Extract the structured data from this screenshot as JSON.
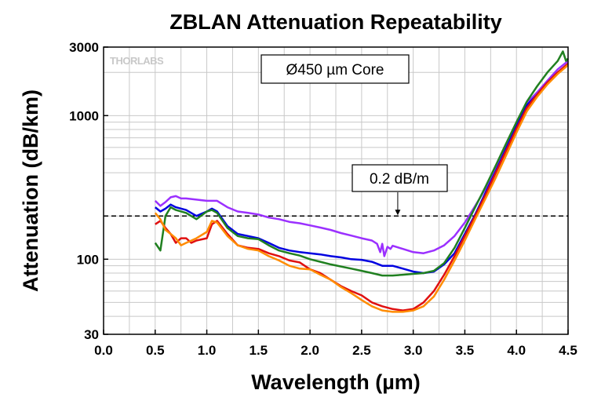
{
  "chart_data": {
    "type": "line",
    "title": "ZBLAN Attenuation Repeatability",
    "xlabel": "Wavelength (µm)",
    "ylabel": "Attenuation (dB/km)",
    "xlim": [
      0.0,
      4.5
    ],
    "ylim": [
      30,
      3000
    ],
    "yscale": "log",
    "grid": true,
    "x_ticks": [
      0.0,
      0.5,
      1.0,
      1.5,
      2.0,
      2.5,
      3.0,
      3.5,
      4.0,
      4.5
    ],
    "x_tick_labels": [
      "0.0",
      "0.5",
      "1.0",
      "1.5",
      "2.0",
      "2.5",
      "3.0",
      "3.5",
      "4.0",
      "4.5"
    ],
    "y_ticks": [
      30,
      100,
      1000,
      3000
    ],
    "y_tick_labels": [
      "30",
      "100",
      "1000",
      "3000"
    ],
    "logo": "THORLABS",
    "annotations": [
      {
        "text": "Ø450 µm Core"
      },
      {
        "text": "0.2 dB/m",
        "reference_y": 200,
        "arrow_x": 2.85
      }
    ],
    "series": [
      {
        "color": "#9b30ff",
        "x": [
          0.5,
          0.55,
          0.6,
          0.65,
          0.7,
          0.75,
          0.8,
          0.9,
          1.0,
          1.1,
          1.2,
          1.3,
          1.4,
          1.5,
          1.6,
          1.7,
          1.8,
          1.9,
          2.0,
          2.1,
          2.2,
          2.3,
          2.4,
          2.5,
          2.6,
          2.65,
          2.68,
          2.7,
          2.72,
          2.75,
          2.78,
          2.8,
          2.9,
          3.0,
          3.1,
          3.2,
          3.3,
          3.4,
          3.5,
          3.6,
          3.7,
          3.8,
          3.9,
          4.0,
          4.1,
          4.2,
          4.3,
          4.4,
          4.5
        ],
        "y": [
          255,
          235,
          250,
          270,
          275,
          265,
          265,
          260,
          255,
          255,
          230,
          215,
          210,
          205,
          195,
          190,
          182,
          178,
          172,
          166,
          160,
          152,
          146,
          140,
          135,
          128,
          112,
          128,
          105,
          122,
          118,
          124,
          118,
          112,
          110,
          115,
          125,
          145,
          180,
          235,
          310,
          430,
          600,
          860,
          1220,
          1450,
          1750,
          2100,
          2400
        ]
      },
      {
        "color": "#0000e0",
        "x": [
          0.5,
          0.55,
          0.6,
          0.65,
          0.7,
          0.8,
          0.9,
          1.0,
          1.05,
          1.1,
          1.2,
          1.3,
          1.4,
          1.5,
          1.6,
          1.7,
          1.8,
          1.9,
          2.0,
          2.1,
          2.2,
          2.3,
          2.4,
          2.5,
          2.6,
          2.7,
          2.8,
          2.9,
          3.0,
          3.1,
          3.2,
          3.3,
          3.4,
          3.5,
          3.6,
          3.7,
          3.8,
          3.9,
          4.0,
          4.1,
          4.2,
          4.3,
          4.4,
          4.5
        ],
        "y": [
          230,
          215,
          225,
          240,
          230,
          220,
          200,
          215,
          225,
          215,
          170,
          150,
          145,
          140,
          130,
          120,
          115,
          112,
          110,
          108,
          105,
          103,
          100,
          99,
          96,
          90,
          90,
          86,
          82,
          80,
          82,
          92,
          110,
          150,
          205,
          290,
          410,
          590,
          840,
          1180,
          1400,
          1700,
          2000,
          2300
        ]
      },
      {
        "color": "#208020",
        "x": [
          0.5,
          0.55,
          0.6,
          0.65,
          0.7,
          0.8,
          0.9,
          1.0,
          1.05,
          1.1,
          1.2,
          1.3,
          1.4,
          1.5,
          1.6,
          1.7,
          1.8,
          1.9,
          2.0,
          2.1,
          2.2,
          2.3,
          2.4,
          2.5,
          2.6,
          2.7,
          2.8,
          2.9,
          3.0,
          3.1,
          3.2,
          3.3,
          3.4,
          3.5,
          3.6,
          3.7,
          3.8,
          3.9,
          4.0,
          4.1,
          4.2,
          4.3,
          4.4,
          4.45,
          4.48,
          4.5
        ],
        "y": [
          130,
          115,
          200,
          230,
          220,
          210,
          190,
          215,
          220,
          210,
          165,
          145,
          140,
          138,
          125,
          115,
          110,
          106,
          100,
          96,
          92,
          89,
          86,
          83,
          80,
          77,
          77,
          78,
          79,
          80,
          83,
          94,
          120,
          165,
          230,
          320,
          450,
          640,
          900,
          1250,
          1600,
          2000,
          2400,
          2800,
          2400,
          2500
        ]
      },
      {
        "color": "#e01010",
        "x": [
          0.5,
          0.55,
          0.6,
          0.65,
          0.7,
          0.75,
          0.8,
          0.85,
          0.9,
          1.0,
          1.05,
          1.1,
          1.2,
          1.3,
          1.4,
          1.5,
          1.6,
          1.7,
          1.8,
          1.9,
          2.0,
          2.1,
          2.2,
          2.3,
          2.4,
          2.5,
          2.6,
          2.7,
          2.8,
          2.9,
          3.0,
          3.1,
          3.2,
          3.3,
          3.4,
          3.5,
          3.6,
          3.7,
          3.8,
          3.9,
          4.0,
          4.1,
          4.2,
          4.3,
          4.4,
          4.5
        ],
        "y": [
          175,
          185,
          165,
          150,
          130,
          140,
          140,
          130,
          135,
          140,
          175,
          185,
          150,
          125,
          120,
          118,
          110,
          105,
          98,
          95,
          85,
          80,
          72,
          65,
          60,
          56,
          50,
          47,
          45,
          44,
          45,
          50,
          60,
          78,
          105,
          145,
          200,
          280,
          400,
          570,
          810,
          1130,
          1400,
          1700,
          2000,
          2300
        ]
      },
      {
        "color": "#ff8c00",
        "x": [
          0.5,
          0.55,
          0.6,
          0.65,
          0.7,
          0.75,
          0.8,
          0.9,
          1.0,
          1.05,
          1.1,
          1.2,
          1.3,
          1.4,
          1.5,
          1.6,
          1.7,
          1.8,
          1.9,
          2.0,
          2.1,
          2.2,
          2.3,
          2.4,
          2.5,
          2.6,
          2.7,
          2.8,
          2.9,
          3.0,
          3.1,
          3.2,
          3.3,
          3.4,
          3.5,
          3.6,
          3.7,
          3.8,
          3.9,
          4.0,
          4.1,
          4.2,
          4.3,
          4.4,
          4.5
        ],
        "y": [
          210,
          190,
          160,
          150,
          140,
          125,
          130,
          140,
          155,
          185,
          180,
          145,
          125,
          118,
          115,
          105,
          98,
          90,
          86,
          85,
          78,
          72,
          64,
          58,
          52,
          47,
          44,
          43,
          43,
          44,
          47,
          55,
          72,
          98,
          135,
          190,
          265,
          370,
          530,
          760,
          1070,
          1350,
          1650,
          1950,
          2250
        ]
      }
    ]
  }
}
